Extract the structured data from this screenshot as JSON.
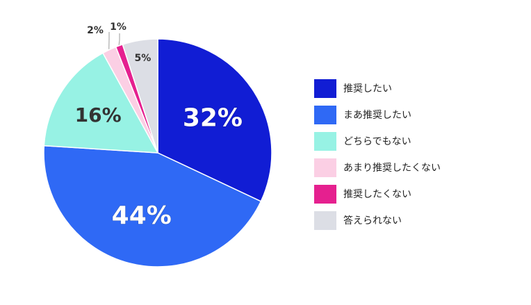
{
  "chart_data": {
    "type": "pie",
    "categories": [
      "推奨したい",
      "まあ推奨したい",
      "どちらでもない",
      "あまり推奨したくない",
      "推奨したくない",
      "答えられない"
    ],
    "values": [
      32,
      44,
      16,
      2,
      1,
      5
    ],
    "value_labels": [
      "32%",
      "44%",
      "16%",
      "2%",
      "1%",
      "5%"
    ],
    "colors": [
      "#111dd4",
      "#2f69f5",
      "#97f2e4",
      "#fbcfe4",
      "#e5208f",
      "#dcdee5"
    ],
    "start_angle": "12 o'clock",
    "direction": "clockwise",
    "legend_position": "right"
  }
}
